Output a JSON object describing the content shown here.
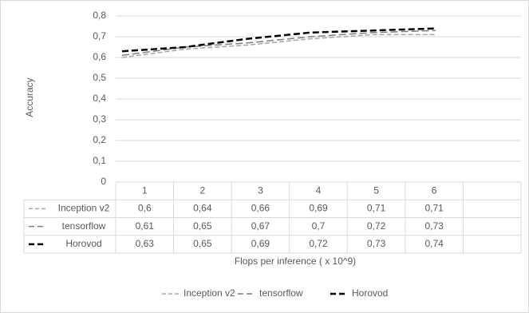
{
  "chart_data": {
    "type": "line",
    "x_label": "Flops per inference ( x 10^9)",
    "y_label": "Accuracy",
    "categories": [
      "1",
      "2",
      "3",
      "4",
      "5",
      "6",
      null
    ],
    "series": [
      {
        "name": "Inception v2",
        "color": "#a6a6a6",
        "values": [
          0.6,
          0.64,
          0.66,
          0.69,
          0.71,
          0.71,
          null
        ],
        "value_labels": [
          "0,6",
          "0,64",
          "0,66",
          "0,69",
          "0,71",
          "0,71",
          null
        ]
      },
      {
        "name": "tensorflow",
        "color": "#7f7f7f",
        "values": [
          0.61,
          0.65,
          0.67,
          0.7,
          0.72,
          0.73,
          null
        ],
        "value_labels": [
          "0,61",
          "0,65",
          "0,67",
          "0,7",
          "0,72",
          "0,73",
          null
        ]
      },
      {
        "name": "Horovod",
        "color": "#000000",
        "values": [
          0.63,
          0.65,
          0.69,
          0.72,
          0.73,
          0.74,
          null
        ],
        "value_labels": [
          "0,63",
          "0,65",
          "0,69",
          "0,72",
          "0,73",
          "0,74",
          null
        ]
      }
    ],
    "ylim": [
      0,
      0.8
    ],
    "yticks": [
      0,
      {
        "value": 0.1,
        "label": "0,1"
      },
      {
        "value": 0.2,
        "label": "0,2"
      },
      {
        "value": 0.3,
        "label": "0,3"
      },
      {
        "value": 0.4,
        "label": "0,4"
      },
      {
        "value": 0.5,
        "label": "0,5"
      },
      {
        "value": 0.6,
        "label": "0,6"
      },
      {
        "value": 0.7,
        "label": "0,7"
      },
      {
        "value": 0.8,
        "label": "0,8"
      }
    ],
    "grid": true,
    "legend": "bottom",
    "data_table": true
  }
}
